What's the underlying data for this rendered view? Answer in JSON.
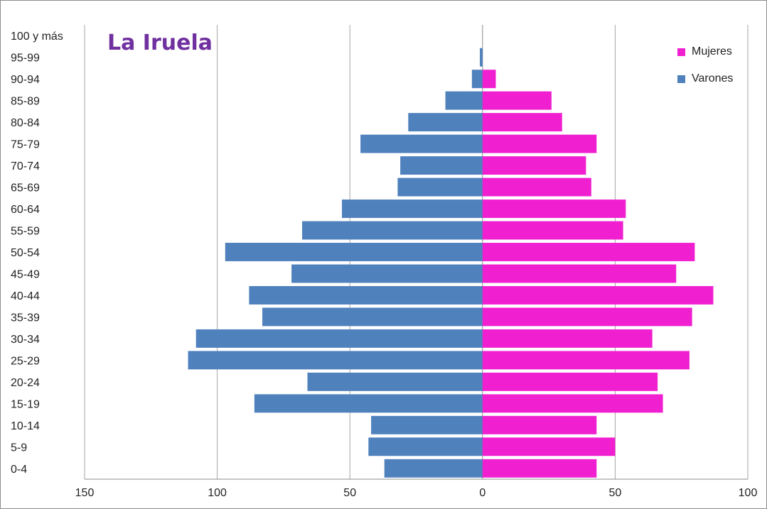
{
  "chart_data": {
    "type": "bar",
    "orientation": "horizontal",
    "title": "La Iruela",
    "categories": [
      "0-4",
      "5-9",
      "10-14",
      "15-19",
      "20-24",
      "25-29",
      "30-34",
      "35-39",
      "40-44",
      "45-49",
      "50-54",
      "55-59",
      "60-64",
      "65-69",
      "70-74",
      "75-79",
      "80-84",
      "85-89",
      "90-94",
      "95-99",
      "100 y más"
    ],
    "series": [
      {
        "name": "Varones",
        "color": "#4f81bd",
        "values": [
          37,
          43,
          42,
          86,
          66,
          111,
          108,
          83,
          88,
          72,
          97,
          68,
          53,
          32,
          31,
          46,
          28,
          14,
          4,
          1,
          0
        ]
      },
      {
        "name": "Mujeres",
        "color": "#f020d0",
        "values": [
          43,
          50,
          43,
          68,
          66,
          78,
          64,
          79,
          87,
          73,
          80,
          53,
          54,
          41,
          39,
          43,
          30,
          26,
          5,
          0,
          0
        ]
      }
    ],
    "xaxis": {
      "min": -150,
      "max": 100,
      "ticks": [
        -150,
        -100,
        -50,
        0,
        50,
        100
      ],
      "tick_labels": [
        "150",
        "100",
        "50",
        "0",
        "50",
        "100"
      ]
    },
    "grid": "vertical",
    "legend_position": "top-right",
    "legend_order": [
      "Mujeres",
      "Varones"
    ]
  }
}
